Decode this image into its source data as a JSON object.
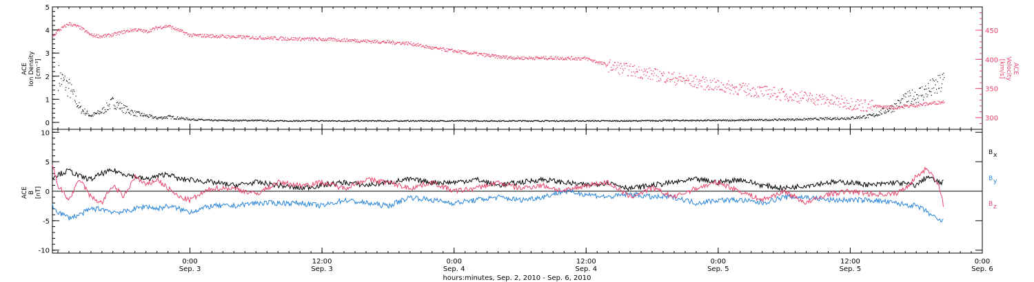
{
  "colors": {
    "density": "#000000",
    "velocity": "#e8446b",
    "bx": "#000000",
    "by": "#2683d8",
    "bz": "#e8446b",
    "axis": "#000000"
  },
  "chart_data": [
    {
      "type": "scatter",
      "panel": "top",
      "xlim_hours": [
        -12.5,
        72
      ],
      "x_ticks": [
        {
          "time": "0:00",
          "date": "Sep. 3"
        },
        {
          "time": "12:00",
          "date": "Sep. 3"
        },
        {
          "time": "0:00",
          "date": "Sep. 4"
        },
        {
          "time": "12:00",
          "date": "Sep. 4"
        },
        {
          "time": "0:00",
          "date": "Sep. 5"
        },
        {
          "time": "12:00",
          "date": "Sep. 5"
        },
        {
          "time": "0:00",
          "date": "Sep. 6"
        }
      ],
      "x_tick_hours": [
        0,
        12,
        24,
        36,
        48,
        60,
        72
      ],
      "left_axis": {
        "label_lines": [
          "ACE",
          "Ion Density"
        ],
        "unit": "[cm⁻³]",
        "ylim": [
          -0.3,
          5
        ],
        "ticks": [
          0,
          1,
          2,
          3,
          4,
          5
        ]
      },
      "right_axis": {
        "label_lines": [
          "ACE",
          "Velocity"
        ],
        "unit": "[km/s]",
        "ylim": [
          280,
          490
        ],
        "ticks": [
          300,
          350,
          400,
          450
        ]
      },
      "series": [
        {
          "axis": "left",
          "x": [
            -12,
            -11,
            -10,
            -9,
            -8,
            -7,
            -6,
            -5,
            -4,
            -3,
            -2,
            -1,
            0,
            2,
            4,
            6,
            8,
            10,
            12,
            16,
            20,
            24,
            28,
            32,
            36,
            40,
            44,
            48,
            52,
            56,
            60,
            62,
            64,
            65,
            66,
            67,
            68,
            68.5
          ],
          "y": [
            2.0,
            1.5,
            0.6,
            0.3,
            0.5,
            0.9,
            0.6,
            0.4,
            0.3,
            0.2,
            0.25,
            0.2,
            0.15,
            0.1,
            0.1,
            0.1,
            0.08,
            0.08,
            0.08,
            0.08,
            0.08,
            0.08,
            0.08,
            0.08,
            0.08,
            0.08,
            0.1,
            0.1,
            0.12,
            0.15,
            0.2,
            0.3,
            0.7,
            1.0,
            1.2,
            1.4,
            1.6,
            1.8
          ]
        },
        {
          "axis": "right",
          "x": [
            -12.5,
            -12,
            -11,
            -10,
            -9,
            -8,
            -7,
            -6,
            -5,
            -4,
            -3,
            -2,
            0,
            3,
            6,
            9,
            12,
            15,
            18,
            20,
            22,
            24,
            26,
            28,
            30,
            33,
            36,
            38,
            40,
            42,
            44,
            46,
            48,
            50,
            52,
            54,
            56,
            58,
            60,
            62,
            64,
            66,
            68.5
          ],
          "y": [
            440,
            450,
            462,
            455,
            442,
            440,
            443,
            448,
            452,
            448,
            455,
            458,
            442,
            440,
            438,
            436,
            435,
            433,
            430,
            428,
            420,
            415,
            410,
            405,
            403,
            403,
            402,
            390,
            382,
            375,
            368,
            362,
            355,
            350,
            345,
            340,
            335,
            330,
            325,
            320,
            318,
            322,
            328
          ]
        }
      ]
    },
    {
      "type": "line",
      "panel": "bottom",
      "xlim_hours": [
        -12.5,
        72
      ],
      "y_axis": {
        "label_lines": [
          "ACE",
          "B"
        ],
        "unit": "[nT]",
        "ylim": [
          -10.5,
          10.5
        ],
        "ticks": [
          -10,
          -5,
          0,
          5,
          10
        ]
      },
      "legend": [
        {
          "main": "B",
          "sub": "x"
        },
        {
          "main": "B",
          "sub": "y"
        },
        {
          "main": "B",
          "sub": "z"
        }
      ],
      "series": [
        {
          "x": [
            -12.5,
            -11,
            -10,
            -9,
            -8,
            -7,
            -6,
            -5,
            -4,
            -3,
            -2,
            -1,
            0,
            2,
            4,
            6,
            8,
            10,
            12,
            14,
            16,
            18,
            20,
            22,
            24,
            26,
            28,
            30,
            32,
            34,
            36,
            38,
            40,
            42,
            44,
            46,
            48,
            50,
            52,
            54,
            56,
            58,
            60,
            62,
            64,
            66,
            67,
            68,
            68.5
          ],
          "y": [
            2.5,
            3.5,
            2.5,
            2.0,
            3.0,
            3.5,
            3.0,
            2.5,
            2.0,
            2.5,
            3.0,
            2.0,
            2.0,
            1.5,
            1.0,
            1.5,
            1.0,
            0.5,
            1.0,
            1.5,
            1.0,
            1.5,
            2.0,
            1.5,
            1.5,
            2.0,
            1.0,
            1.5,
            2.0,
            1.5,
            1.0,
            1.5,
            0.5,
            1.0,
            1.5,
            2.0,
            1.5,
            2.0,
            1.0,
            0.5,
            1.0,
            1.5,
            1.5,
            1.0,
            1.5,
            1.0,
            2.5,
            1.5,
            1.5
          ]
        },
        {
          "x": [
            -12.5,
            -12,
            -11,
            -10,
            -9,
            -8,
            -7,
            -6,
            -5,
            -4,
            -3,
            -2,
            -1,
            0,
            2,
            4,
            6,
            8,
            10,
            12,
            14,
            16,
            18,
            20,
            22,
            24,
            26,
            28,
            30,
            32,
            34,
            36,
            38,
            40,
            42,
            44,
            46,
            48,
            50,
            52,
            54,
            56,
            58,
            60,
            62,
            64,
            66,
            67,
            68,
            68.5
          ],
          "y": [
            -2.5,
            -3.5,
            -4.5,
            -4.0,
            -3.0,
            -3.0,
            -3.5,
            -3.5,
            -3.0,
            -2.5,
            -3.0,
            -2.5,
            -3.0,
            -3.5,
            -2.5,
            -2.5,
            -2.0,
            -2.0,
            -2.0,
            -2.5,
            -1.5,
            -2.0,
            -2.5,
            -1.0,
            -1.5,
            -2.0,
            -1.5,
            -1.0,
            -1.5,
            -1.0,
            0.0,
            -0.5,
            -1.0,
            -0.5,
            -1.0,
            -1.0,
            -2.0,
            -1.5,
            -1.5,
            -2.0,
            -1.0,
            -1.0,
            -1.5,
            -1.5,
            -1.5,
            -2.0,
            -2.5,
            -3.5,
            -5.0,
            -5.0
          ]
        },
        {
          "x": [
            -12.5,
            -12,
            -11,
            -10,
            -9,
            -8,
            -7,
            -6,
            -5,
            -4,
            -3,
            -2,
            -1,
            0,
            2,
            4,
            6,
            8,
            10,
            12,
            14,
            16,
            18,
            20,
            22,
            24,
            26,
            28,
            30,
            32,
            34,
            36,
            38,
            40,
            42,
            44,
            46,
            48,
            50,
            52,
            54,
            56,
            58,
            60,
            62,
            64,
            65,
            66,
            67,
            68,
            68.5
          ],
          "y": [
            4.5,
            1.0,
            -1.5,
            2.0,
            -1.0,
            -2.0,
            1.0,
            -1.0,
            2.5,
            1.0,
            2.0,
            0.5,
            -1.0,
            -1.5,
            0.5,
            0.5,
            -0.5,
            1.5,
            1.0,
            1.5,
            0.5,
            2.0,
            1.5,
            0.5,
            1.5,
            0.0,
            0.5,
            1.5,
            0.5,
            1.0,
            0.0,
            1.0,
            1.5,
            -1.0,
            0.5,
            -1.0,
            0.5,
            1.5,
            0.0,
            -1.5,
            0.0,
            -2.0,
            -0.5,
            0.0,
            -0.5,
            -0.5,
            0.5,
            2.5,
            4.0,
            1.0,
            -2.5
          ]
        }
      ]
    }
  ],
  "xlabel": "hours:minutes, Sep.  2, 2010 - Sep.  6, 2010"
}
